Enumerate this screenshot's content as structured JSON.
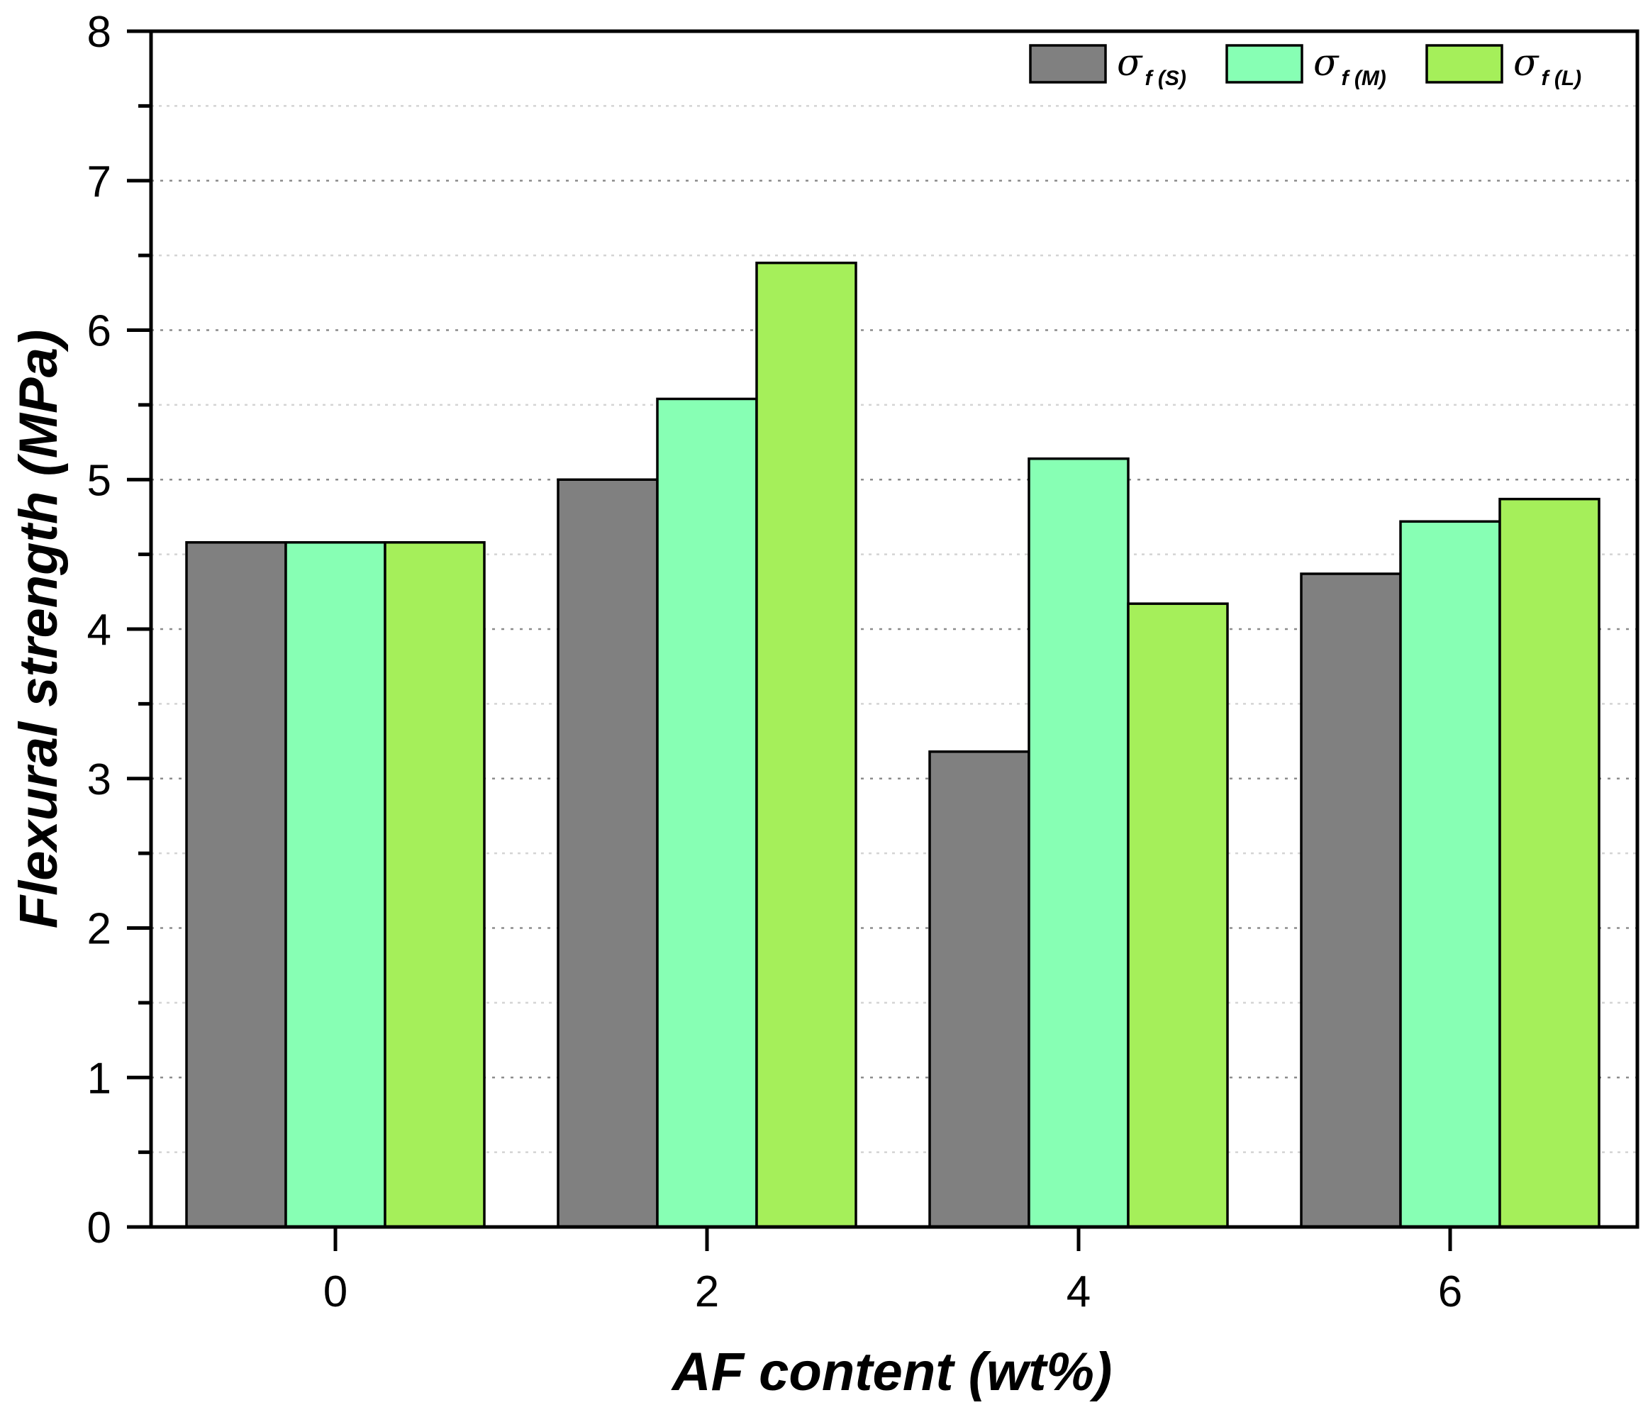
{
  "chart_data": {
    "type": "bar",
    "title": "",
    "xlabel": "AF content (wt%)",
    "ylabel": "Flexural strength (MPa)",
    "categories": [
      "0",
      "2",
      "4",
      "6"
    ],
    "ylim": [
      0,
      8
    ],
    "yticks": [
      "0",
      "1",
      "2",
      "3",
      "4",
      "5",
      "6",
      "7",
      "8"
    ],
    "grid": true,
    "legend_position": "top-right",
    "series": [
      {
        "name": "σf (S)",
        "symbol": "σ",
        "sub": "f (S)",
        "color": "#808080",
        "values": [
          4.58,
          5.0,
          3.18,
          4.37
        ]
      },
      {
        "name": "σf (M)",
        "symbol": "σ",
        "sub": "f (M)",
        "color": "#87FFB4",
        "values": [
          4.58,
          5.54,
          5.14,
          4.72
        ]
      },
      {
        "name": "σf (L)",
        "symbol": "σ",
        "sub": "f (L)",
        "color": "#A5EF5A",
        "values": [
          4.58,
          6.45,
          4.17,
          4.87
        ]
      }
    ]
  }
}
